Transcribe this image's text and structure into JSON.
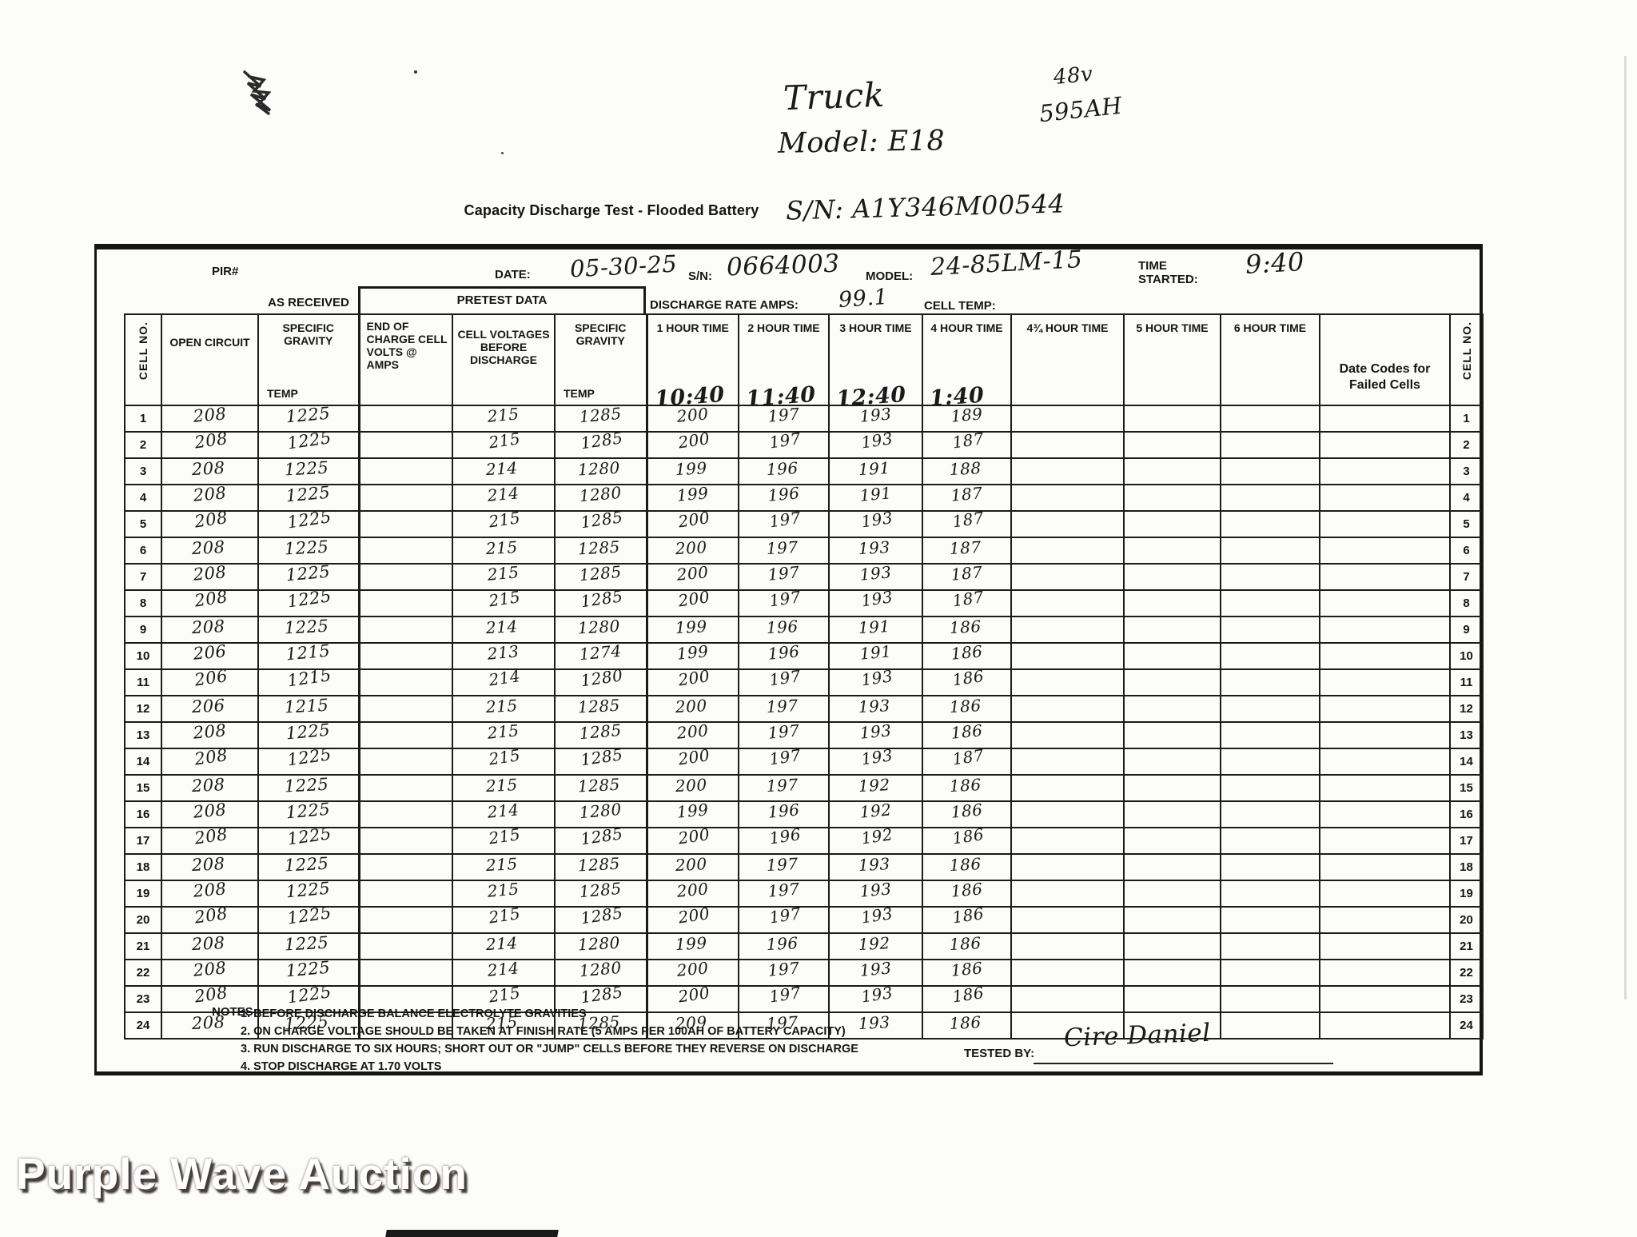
{
  "watermark": "Purple Wave Auction",
  "handwritten_top": {
    "vehicle": "Truck",
    "model": "Model: E18",
    "voltage": "48v",
    "amp_hours": "595AH",
    "serial": "S/N: A1Y346M00544"
  },
  "title": "Capacity Discharge Test - Flooded Battery",
  "header": {
    "pir_label": "PIR#",
    "date_label": "DATE:",
    "date_value": "05-30-25",
    "sn_label": "S/N:",
    "sn_value": "0664003",
    "model_label": "MODEL:",
    "model_value": "24-85LM-15",
    "time_started_label_1": "TIME",
    "time_started_label_2": "STARTED:",
    "time_started_value": "9:40",
    "as_received_label": "AS RECEIVED",
    "pretest_data_label": "PRETEST DATA",
    "discharge_rate_label": "DISCHARGE RATE AMPS:",
    "discharge_rate_value": "99.1",
    "cell_temp_label": "CELL TEMP:",
    "cell_temp_value": "",
    "pir_value": ""
  },
  "table": {
    "cell_no_label": "CELL NO.",
    "col_open_circuit": "OPEN CIRCUIT",
    "col_specific_gravity": "SPECIFIC GRAVITY",
    "col_temp": "TEMP",
    "col_end_of_charge": "END OF CHARGE CELL VOLTS @ AMPS",
    "col_cell_voltages": "CELL VOLTAGES BEFORE DISCHARGE",
    "col_specific_gravity2": "SPECIFIC GRAVITY",
    "col_temp2": "TEMP",
    "col_date_codes": "Date Codes for Failed Cells",
    "hour_headers": [
      "1 HOUR TIME",
      "2 HOUR TIME",
      "3 HOUR TIME",
      "4 HOUR TIME",
      "4¾ HOUR TIME",
      "5 HOUR TIME",
      "6 HOUR TIME"
    ],
    "hour_times": [
      "10:40",
      "11:40",
      "12:40",
      "1:40",
      "",
      "",
      ""
    ],
    "rows": [
      {
        "cell": "1",
        "open_circuit": "208",
        "sg_temp": "1225",
        "end_of_charge": "",
        "volts_before": "215",
        "sg_temp2": "1285",
        "hours": [
          "200",
          "197",
          "193",
          "189",
          "",
          "",
          ""
        ],
        "date_codes": ""
      },
      {
        "cell": "2",
        "open_circuit": "208",
        "sg_temp": "1225",
        "end_of_charge": "",
        "volts_before": "215",
        "sg_temp2": "1285",
        "hours": [
          "200",
          "197",
          "193",
          "187",
          "",
          "",
          ""
        ],
        "date_codes": ""
      },
      {
        "cell": "3",
        "open_circuit": "208",
        "sg_temp": "1225",
        "end_of_charge": "",
        "volts_before": "214",
        "sg_temp2": "1280",
        "hours": [
          "199",
          "196",
          "191",
          "188",
          "",
          "",
          ""
        ],
        "date_codes": ""
      },
      {
        "cell": "4",
        "open_circuit": "208",
        "sg_temp": "1225",
        "end_of_charge": "",
        "volts_before": "214",
        "sg_temp2": "1280",
        "hours": [
          "199",
          "196",
          "191",
          "187",
          "",
          "",
          ""
        ],
        "date_codes": ""
      },
      {
        "cell": "5",
        "open_circuit": "208",
        "sg_temp": "1225",
        "end_of_charge": "",
        "volts_before": "215",
        "sg_temp2": "1285",
        "hours": [
          "200",
          "197",
          "193",
          "187",
          "",
          "",
          ""
        ],
        "date_codes": ""
      },
      {
        "cell": "6",
        "open_circuit": "208",
        "sg_temp": "1225",
        "end_of_charge": "",
        "volts_before": "215",
        "sg_temp2": "1285",
        "hours": [
          "200",
          "197",
          "193",
          "187",
          "",
          "",
          ""
        ],
        "date_codes": ""
      },
      {
        "cell": "7",
        "open_circuit": "208",
        "sg_temp": "1225",
        "end_of_charge": "",
        "volts_before": "215",
        "sg_temp2": "1285",
        "hours": [
          "200",
          "197",
          "193",
          "187",
          "",
          "",
          ""
        ],
        "date_codes": ""
      },
      {
        "cell": "8",
        "open_circuit": "208",
        "sg_temp": "1225",
        "end_of_charge": "",
        "volts_before": "215",
        "sg_temp2": "1285",
        "hours": [
          "200",
          "197",
          "193",
          "187",
          "",
          "",
          ""
        ],
        "date_codes": ""
      },
      {
        "cell": "9",
        "open_circuit": "208",
        "sg_temp": "1225",
        "end_of_charge": "",
        "volts_before": "214",
        "sg_temp2": "1280",
        "hours": [
          "199",
          "196",
          "191",
          "186",
          "",
          "",
          ""
        ],
        "date_codes": ""
      },
      {
        "cell": "10",
        "open_circuit": "206",
        "sg_temp": "1215",
        "end_of_charge": "",
        "volts_before": "213",
        "sg_temp2": "1274",
        "hours": [
          "199",
          "196",
          "191",
          "186",
          "",
          "",
          ""
        ],
        "date_codes": ""
      },
      {
        "cell": "11",
        "open_circuit": "206",
        "sg_temp": "1215",
        "end_of_charge": "",
        "volts_before": "214",
        "sg_temp2": "1280",
        "hours": [
          "200",
          "197",
          "193",
          "186",
          "",
          "",
          ""
        ],
        "date_codes": ""
      },
      {
        "cell": "12",
        "open_circuit": "206",
        "sg_temp": "1215",
        "end_of_charge": "",
        "volts_before": "215",
        "sg_temp2": "1285",
        "hours": [
          "200",
          "197",
          "193",
          "186",
          "",
          "",
          ""
        ],
        "date_codes": ""
      },
      {
        "cell": "13",
        "open_circuit": "208",
        "sg_temp": "1225",
        "end_of_charge": "",
        "volts_before": "215",
        "sg_temp2": "1285",
        "hours": [
          "200",
          "197",
          "193",
          "186",
          "",
          "",
          ""
        ],
        "date_codes": ""
      },
      {
        "cell": "14",
        "open_circuit": "208",
        "sg_temp": "1225",
        "end_of_charge": "",
        "volts_before": "215",
        "sg_temp2": "1285",
        "hours": [
          "200",
          "197",
          "193",
          "187",
          "",
          "",
          ""
        ],
        "date_codes": ""
      },
      {
        "cell": "15",
        "open_circuit": "208",
        "sg_temp": "1225",
        "end_of_charge": "",
        "volts_before": "215",
        "sg_temp2": "1285",
        "hours": [
          "200",
          "197",
          "192",
          "186",
          "",
          "",
          ""
        ],
        "date_codes": ""
      },
      {
        "cell": "16",
        "open_circuit": "208",
        "sg_temp": "1225",
        "end_of_charge": "",
        "volts_before": "214",
        "sg_temp2": "1280",
        "hours": [
          "199",
          "196",
          "192",
          "186",
          "",
          "",
          ""
        ],
        "date_codes": ""
      },
      {
        "cell": "17",
        "open_circuit": "208",
        "sg_temp": "1225",
        "end_of_charge": "",
        "volts_before": "215",
        "sg_temp2": "1285",
        "hours": [
          "200",
          "196",
          "192",
          "186",
          "",
          "",
          ""
        ],
        "date_codes": ""
      },
      {
        "cell": "18",
        "open_circuit": "208",
        "sg_temp": "1225",
        "end_of_charge": "",
        "volts_before": "215",
        "sg_temp2": "1285",
        "hours": [
          "200",
          "197",
          "193",
          "186",
          "",
          "",
          ""
        ],
        "date_codes": ""
      },
      {
        "cell": "19",
        "open_circuit": "208",
        "sg_temp": "1225",
        "end_of_charge": "",
        "volts_before": "215",
        "sg_temp2": "1285",
        "hours": [
          "200",
          "197",
          "193",
          "186",
          "",
          "",
          ""
        ],
        "date_codes": ""
      },
      {
        "cell": "20",
        "open_circuit": "208",
        "sg_temp": "1225",
        "end_of_charge": "",
        "volts_before": "215",
        "sg_temp2": "1285",
        "hours": [
          "200",
          "197",
          "193",
          "186",
          "",
          "",
          ""
        ],
        "date_codes": ""
      },
      {
        "cell": "21",
        "open_circuit": "208",
        "sg_temp": "1225",
        "end_of_charge": "",
        "volts_before": "214",
        "sg_temp2": "1280",
        "hours": [
          "199",
          "196",
          "192",
          "186",
          "",
          "",
          ""
        ],
        "date_codes": ""
      },
      {
        "cell": "22",
        "open_circuit": "208",
        "sg_temp": "1225",
        "end_of_charge": "",
        "volts_before": "214",
        "sg_temp2": "1280",
        "hours": [
          "200",
          "197",
          "193",
          "186",
          "",
          "",
          ""
        ],
        "date_codes": ""
      },
      {
        "cell": "23",
        "open_circuit": "208",
        "sg_temp": "1225",
        "end_of_charge": "",
        "volts_before": "215",
        "sg_temp2": "1285",
        "hours": [
          "200",
          "197",
          "193",
          "186",
          "",
          "",
          ""
        ],
        "date_codes": ""
      },
      {
        "cell": "24",
        "open_circuit": "208",
        "sg_temp": "1225",
        "end_of_charge": "",
        "volts_before": "215",
        "sg_temp2": "1285",
        "hours": [
          "209",
          "197",
          "193",
          "186",
          "",
          "",
          ""
        ],
        "date_codes": ""
      }
    ]
  },
  "notes": {
    "label": "NOTES:",
    "lines": [
      "1. BEFORE DISCHARGE BALANCE ELECTROLYTE GRAVITIES",
      "2. ON CHARGE VOLTAGE SHOULD BE TAKEN AT FINISH RATE (5 AMPS PER 100AH OF BATTERY CAPACITY)",
      "3. RUN DISCHARGE TO SIX HOURS; SHORT OUT OR \"JUMP\" CELLS BEFORE THEY REVERSE ON DISCHARGE",
      "4. STOP DISCHARGE AT 1.70 VOLTS"
    ],
    "tested_by_label": "TESTED BY:",
    "tested_by_value": "Cire Daniel"
  }
}
